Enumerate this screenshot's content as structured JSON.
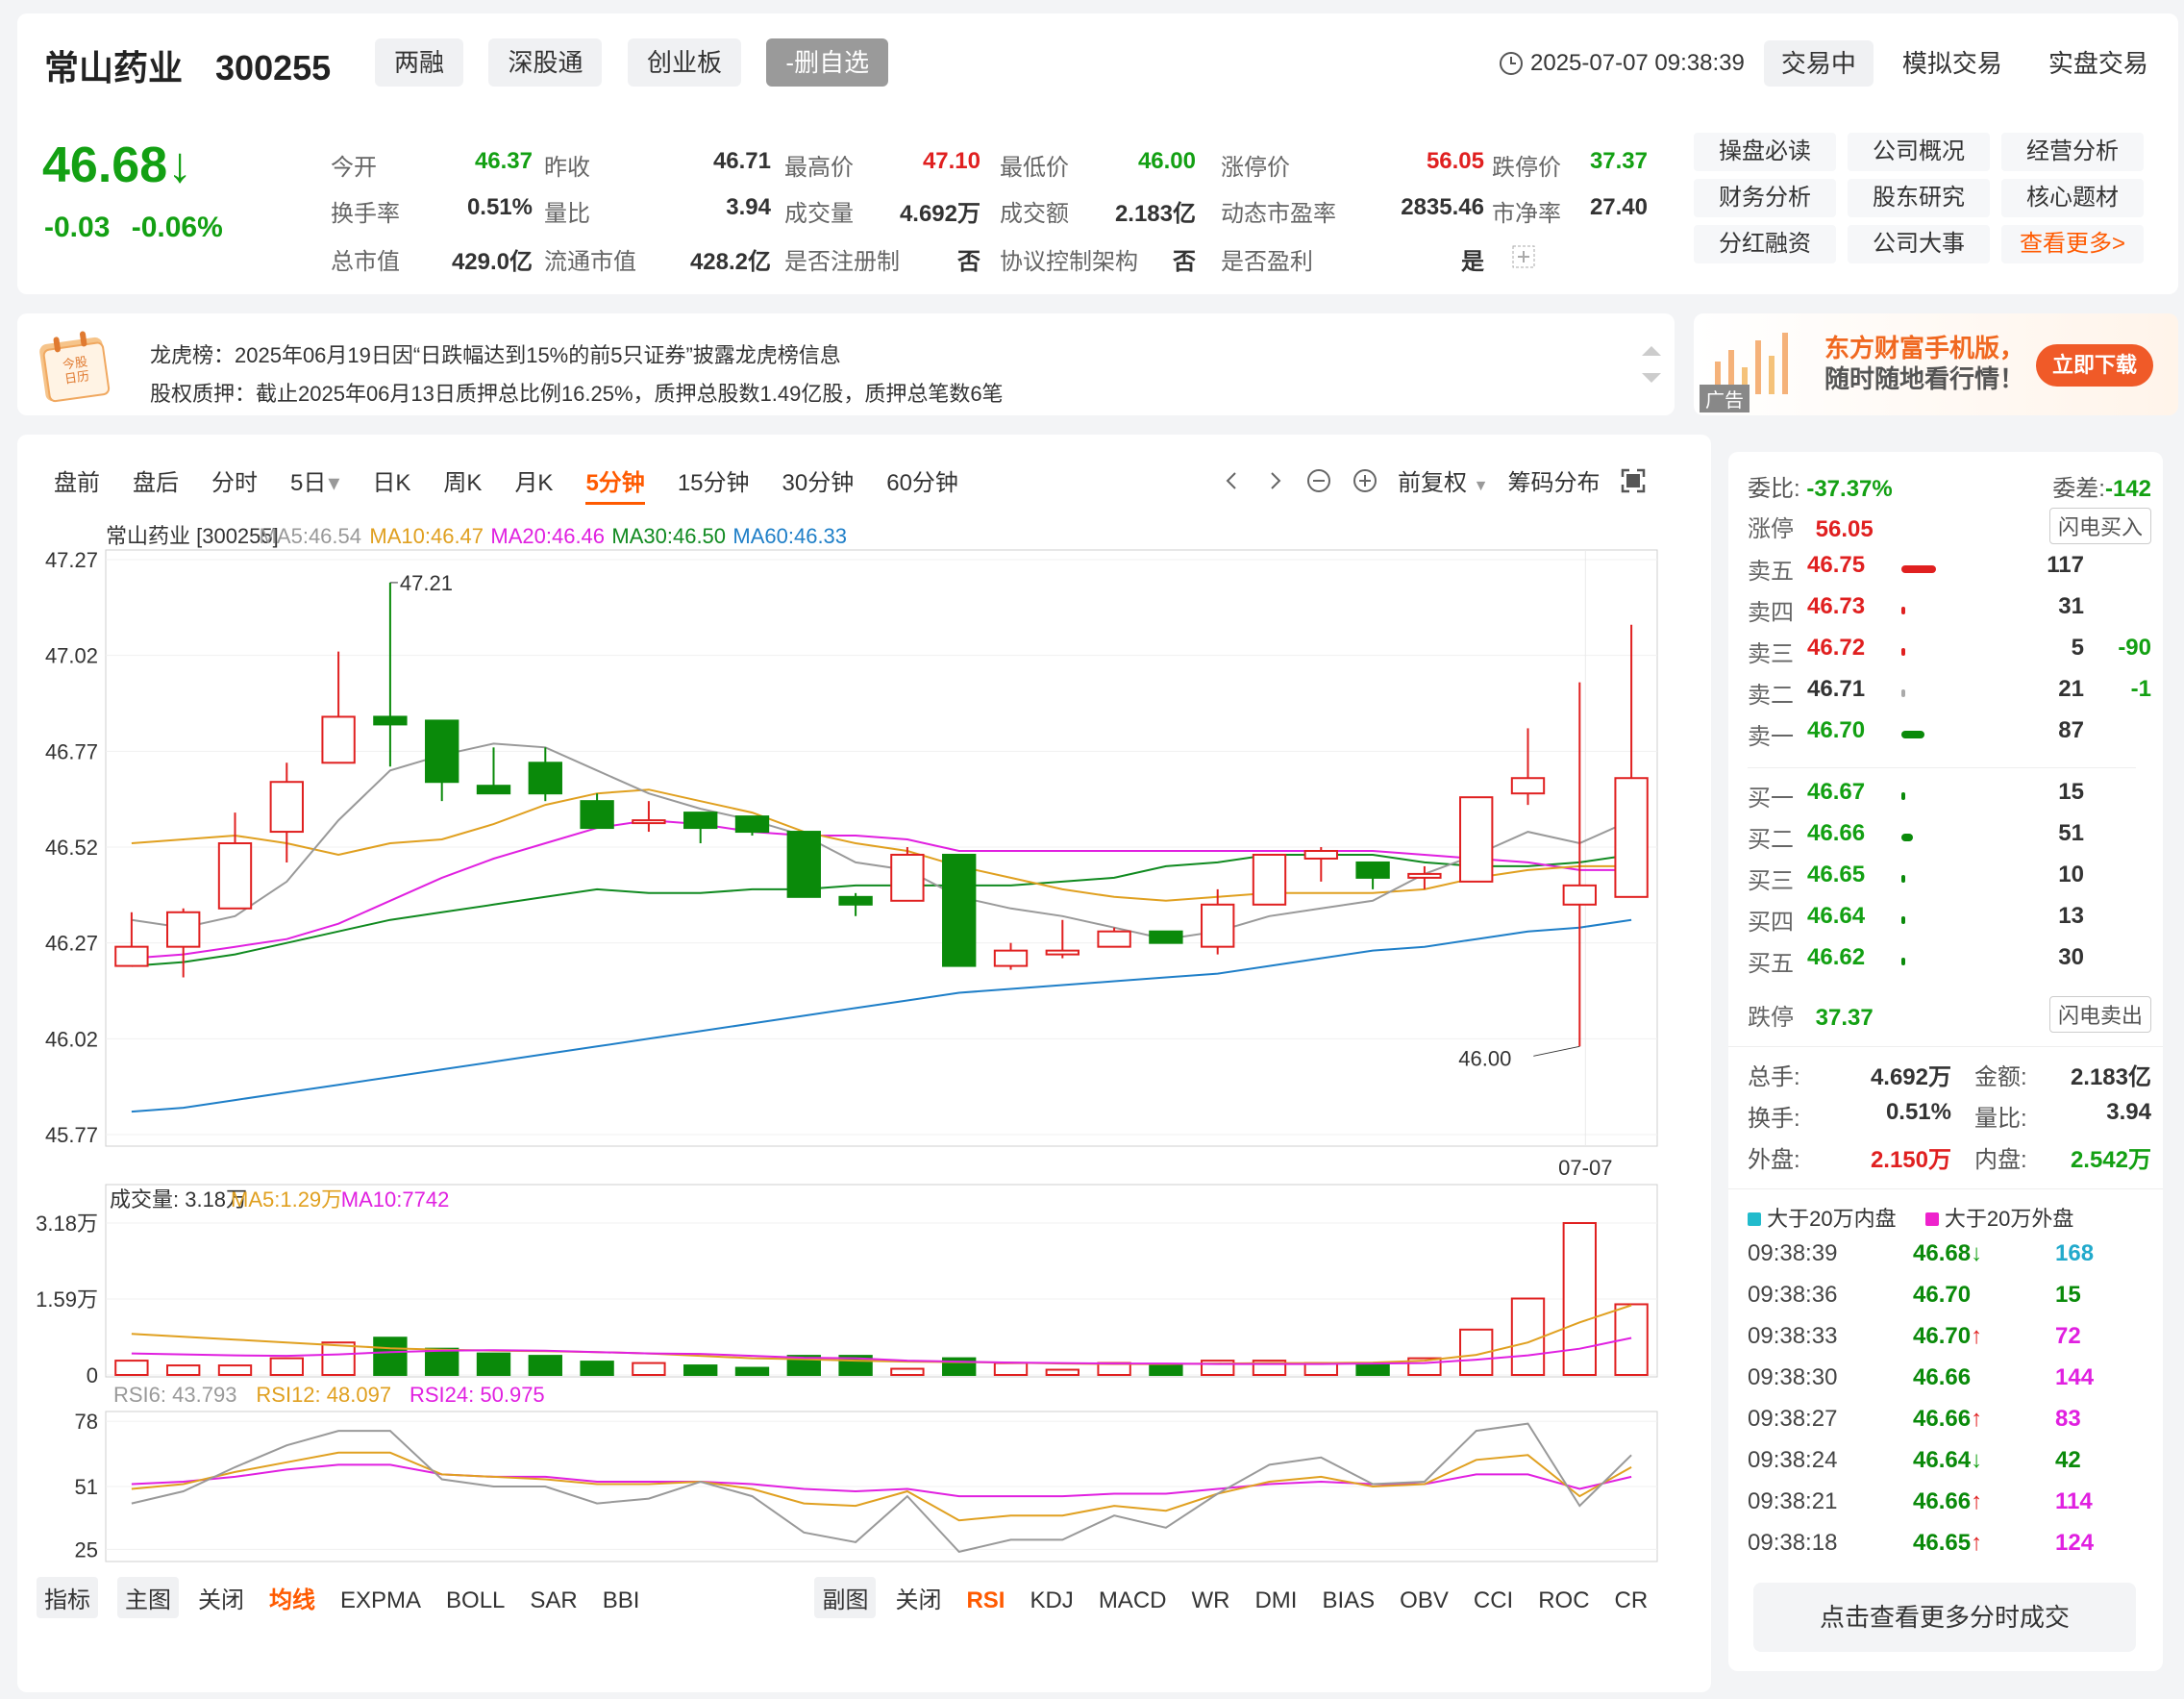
{
  "stock": {
    "name": "常山药业",
    "code": "300255",
    "tags": [
      "两融",
      "深股通",
      "创业板"
    ],
    "watchlist_btn": "-删自选"
  },
  "header": {
    "clock_icon": "clock-icon",
    "datetime": "2025-07-07 09:38:39",
    "status": "交易中",
    "sim_trade": "模拟交易",
    "real_trade": "实盘交易"
  },
  "price": {
    "current": "46.68",
    "arrow": "↓",
    "change": "-0.03",
    "change_pct": "-0.06%"
  },
  "quote": {
    "open_label": "今开",
    "open": "46.37",
    "prev_close_label": "昨收",
    "prev_close": "46.71",
    "high_label": "最高价",
    "high": "47.10",
    "low_label": "最低价",
    "low": "46.00",
    "limit_up_label": "涨停价",
    "limit_up": "56.05",
    "limit_down_label": "跌停价",
    "limit_down": "37.37",
    "turnover_label": "换手率",
    "turnover": "0.51%",
    "vol_ratio_label": "量比",
    "vol_ratio": "3.94",
    "volume_label": "成交量",
    "volume": "4.692万",
    "amount_label": "成交额",
    "amount": "2.183亿",
    "pe_label": "动态市盈率",
    "pe": "2835.46",
    "pb_label": "市净率",
    "pb": "27.40",
    "mktcap_label": "总市值",
    "mktcap": "429.0亿",
    "float_cap_label": "流通市值",
    "float_cap": "428.2亿",
    "registered_label": "是否注册制",
    "registered": "否",
    "vie_label": "协议控制架构",
    "vie": "否",
    "profit_label": "是否盈利",
    "profit": "是"
  },
  "links": [
    "操盘必读",
    "公司概况",
    "经营分析",
    "财务分析",
    "股东研究",
    "核心题材",
    "分红融资",
    "公司大事",
    "查看更多>"
  ],
  "news": {
    "calendar_line1": "今股",
    "calendar_line2": "日历",
    "line1": "龙虎榜：2025年06月19日因“日跌幅达到15%的前5只证券”披露龙虎榜信息",
    "line2": "股权质押：截止2025年06月13日质押总比例16.25%，质押总股数1.49亿股，质押总笔数6笔"
  },
  "ad": {
    "line1": "东方财富手机版，",
    "line2": "随时随地看行情！",
    "button": "立即下载",
    "tag": "广告"
  },
  "chart_tabs": [
    "盘前",
    "盘后",
    "分时",
    "5日",
    "日K",
    "周K",
    "月K",
    "5分钟",
    "15分钟",
    "30分钟",
    "60分钟"
  ],
  "chart_tabs_selected": "5分钟",
  "chart_tools": {
    "adjust": "前复权",
    "chips": "筹码分布"
  },
  "ma_legend": {
    "title": "常山药业 [300255]",
    "ma5": "MA5:46.54",
    "ma10": "MA10:46.47",
    "ma20": "MA20:46.46",
    "ma30": "MA30:46.50",
    "ma60": "MA60:46.33"
  },
  "vol_legend": {
    "title": "成交量: 3.18万",
    "ma5": "MA5:1.29万",
    "ma10": "MA10:7742"
  },
  "rsi_legend": {
    "rsi6": "RSI6: 43.793",
    "rsi12": "RSI12: 48.097",
    "rsi24": "RSI24: 50.975"
  },
  "colors": {
    "up": "#e02020",
    "down": "#0a8a0a",
    "ma5": "#999999",
    "ma10": "#e0a020",
    "ma20": "#e020e0",
    "ma30": "#108a20",
    "ma60": "#1f7fc8",
    "accent": "#ff5a00"
  },
  "chart_data": [
    {
      "type": "candlestick",
      "date_label": "07-07",
      "y_ticks": [
        "47.27",
        "47.02",
        "46.77",
        "46.52",
        "46.27",
        "46.02",
        "45.77"
      ],
      "ylim": [
        45.77,
        47.27
      ],
      "high_label": "47.21",
      "low_label": "46.00",
      "candles": [
        {
          "o": 46.21,
          "c": 46.26,
          "h": 46.35,
          "l": 46.21
        },
        {
          "o": 46.26,
          "c": 46.35,
          "h": 46.36,
          "l": 46.18
        },
        {
          "o": 46.36,
          "c": 46.53,
          "h": 46.61,
          "l": 46.36
        },
        {
          "o": 46.56,
          "c": 46.69,
          "h": 46.74,
          "l": 46.48
        },
        {
          "o": 46.74,
          "c": 46.86,
          "h": 47.03,
          "l": 46.74
        },
        {
          "o": 46.86,
          "c": 46.84,
          "h": 47.21,
          "l": 46.73
        },
        {
          "o": 46.85,
          "c": 46.69,
          "h": 46.85,
          "l": 46.64
        },
        {
          "o": 46.68,
          "c": 46.66,
          "h": 46.78,
          "l": 46.66
        },
        {
          "o": 46.74,
          "c": 46.66,
          "h": 46.78,
          "l": 46.64
        },
        {
          "o": 46.64,
          "c": 46.57,
          "h": 46.66,
          "l": 46.57
        },
        {
          "o": 46.59,
          "c": 46.59,
          "h": 46.64,
          "l": 46.56
        },
        {
          "o": 46.61,
          "c": 46.57,
          "h": 46.61,
          "l": 46.53
        },
        {
          "o": 46.6,
          "c": 46.56,
          "h": 46.6,
          "l": 46.55
        },
        {
          "o": 46.56,
          "c": 46.39,
          "h": 46.56,
          "l": 46.39
        },
        {
          "o": 46.39,
          "c": 46.37,
          "h": 46.4,
          "l": 46.34
        },
        {
          "o": 46.38,
          "c": 46.5,
          "h": 46.52,
          "l": 46.38
        },
        {
          "o": 46.5,
          "c": 46.21,
          "h": 46.5,
          "l": 46.21
        },
        {
          "o": 46.21,
          "c": 46.25,
          "h": 46.27,
          "l": 46.2
        },
        {
          "o": 46.24,
          "c": 46.25,
          "h": 46.33,
          "l": 46.23
        },
        {
          "o": 46.26,
          "c": 46.3,
          "h": 46.31,
          "l": 46.26
        },
        {
          "o": 46.3,
          "c": 46.27,
          "h": 46.3,
          "l": 46.27
        },
        {
          "o": 46.26,
          "c": 46.37,
          "h": 46.41,
          "l": 46.24
        },
        {
          "o": 46.37,
          "c": 46.5,
          "h": 46.5,
          "l": 46.37
        },
        {
          "o": 46.49,
          "c": 46.51,
          "h": 46.52,
          "l": 46.43
        },
        {
          "o": 46.48,
          "c": 46.44,
          "h": 46.48,
          "l": 46.41
        },
        {
          "o": 46.44,
          "c": 46.45,
          "h": 46.47,
          "l": 46.41
        },
        {
          "o": 46.43,
          "c": 46.65,
          "h": 46.65,
          "l": 46.43
        },
        {
          "o": 46.66,
          "c": 46.7,
          "h": 46.83,
          "l": 46.63
        },
        {
          "o": 46.37,
          "c": 46.42,
          "h": 46.95,
          "l": 46.0
        },
        {
          "o": 46.39,
          "c": 46.7,
          "h": 47.1,
          "l": 46.39
        }
      ],
      "ma5": [
        46.33,
        46.31,
        46.34,
        46.43,
        46.59,
        46.72,
        46.76,
        46.79,
        46.78,
        46.72,
        46.66,
        46.62,
        46.59,
        46.55,
        46.48,
        46.46,
        46.39,
        46.36,
        46.34,
        46.31,
        46.28,
        46.3,
        46.34,
        46.36,
        46.38,
        46.45,
        46.5,
        46.56,
        46.53,
        46.59
      ],
      "ma10": [
        46.53,
        46.54,
        46.55,
        46.53,
        46.5,
        46.53,
        46.54,
        46.58,
        46.63,
        46.66,
        46.67,
        46.64,
        46.61,
        46.56,
        46.53,
        46.51,
        46.47,
        46.44,
        46.41,
        46.39,
        46.38,
        46.39,
        46.4,
        46.4,
        46.4,
        46.41,
        46.44,
        46.46,
        46.47,
        46.47
      ],
      "ma20": [
        46.23,
        46.24,
        46.26,
        46.28,
        46.32,
        46.38,
        46.44,
        46.49,
        46.53,
        46.57,
        46.59,
        46.58,
        46.56,
        46.55,
        46.55,
        46.54,
        46.51,
        46.51,
        46.51,
        46.51,
        46.51,
        46.51,
        46.51,
        46.51,
        46.51,
        46.5,
        46.49,
        46.48,
        46.46,
        46.46
      ],
      "ma30": [
        46.21,
        46.22,
        46.24,
        46.27,
        46.3,
        46.33,
        46.35,
        46.37,
        46.39,
        46.41,
        46.4,
        46.4,
        46.41,
        46.41,
        46.42,
        46.42,
        46.42,
        46.42,
        46.43,
        46.44,
        46.47,
        46.48,
        46.5,
        46.5,
        46.5,
        46.48,
        46.47,
        46.47,
        46.48,
        46.5
      ],
      "ma60": [
        45.83,
        45.84,
        45.86,
        45.88,
        45.9,
        45.92,
        45.94,
        45.96,
        45.98,
        46.0,
        46.02,
        46.04,
        46.06,
        46.08,
        46.1,
        46.12,
        46.14,
        46.15,
        46.16,
        46.17,
        46.18,
        46.19,
        46.21,
        46.23,
        46.25,
        46.26,
        46.28,
        46.3,
        46.31,
        46.33
      ]
    },
    {
      "type": "bar",
      "title": "成交量",
      "y_ticks": [
        "3.18万",
        "1.59万",
        "0"
      ],
      "ylim": [
        0,
        31800
      ],
      "values": [
        3000,
        2000,
        2000,
        3500,
        6800,
        7800,
        5500,
        4500,
        4000,
        2800,
        2500,
        2000,
        1500,
        4000,
        4000,
        1300,
        3500,
        2500,
        1100,
        2500,
        2000,
        3000,
        3000,
        2500,
        2500,
        3500,
        9500,
        16000,
        31800,
        14800
      ],
      "ma5": [
        8600,
        8000,
        7400,
        6800,
        6200,
        5600,
        5300,
        5100,
        5000,
        4800,
        4500,
        4000,
        3500,
        3300,
        3000,
        2800,
        2700,
        2600,
        2400,
        2300,
        2300,
        2400,
        2500,
        2500,
        2600,
        3000,
        4200,
        6800,
        11000,
        14600
      ],
      "ma10": [
        4500,
        4300,
        4100,
        4000,
        4300,
        4800,
        5100,
        5200,
        5100,
        4800,
        4500,
        4400,
        4000,
        3600,
        3500,
        3000,
        2800,
        2600,
        2500,
        2400,
        2400,
        2300,
        2300,
        2300,
        2400,
        2500,
        3200,
        4100,
        5500,
        7742
      ]
    },
    {
      "type": "line",
      "title": "RSI",
      "y_ticks": [
        "78",
        "51",
        "25"
      ],
      "ylim": [
        20,
        82
      ],
      "rsi6": [
        44,
        49,
        59,
        68,
        74,
        74,
        54,
        51,
        51,
        44,
        46,
        53,
        47,
        32,
        28,
        47,
        24,
        29,
        29,
        39,
        34,
        48,
        60,
        63,
        52,
        53,
        74,
        77,
        43,
        64
      ],
      "rsi12": [
        50,
        52,
        57,
        61,
        65,
        65,
        56,
        55,
        54,
        52,
        52,
        53,
        50,
        44,
        43,
        49,
        37,
        39,
        39,
        43,
        41,
        48,
        53,
        55,
        51,
        52,
        62,
        64,
        47,
        59
      ],
      "rsi24": [
        52,
        53,
        55,
        58,
        60,
        60,
        56,
        55,
        55,
        53,
        53,
        53,
        52,
        50,
        49,
        50,
        47,
        47,
        47,
        48,
        48,
        50,
        52,
        53,
        52,
        52,
        56,
        56,
        50,
        55
      ]
    }
  ],
  "indicator_bar": {
    "indicator": "指标",
    "main": "主图",
    "close1": "关闭",
    "items1": [
      "均线",
      "EXPMA",
      "BOLL",
      "SAR",
      "BBI"
    ],
    "sub": "副图",
    "close2": "关闭",
    "items2": [
      "RSI",
      "KDJ",
      "MACD",
      "WR",
      "DMI",
      "BIAS",
      "OBV",
      "CCI",
      "ROC",
      "CR"
    ]
  },
  "orderbook": {
    "ratio_label": "委比:",
    "ratio": "-37.37%",
    "diff_label": "委差:",
    "diff": "-142",
    "limit_up_label": "涨停",
    "limit_up": "56.05",
    "flash_buy": "闪电买入",
    "limit_down_label": "跌停",
    "limit_down": "37.37",
    "flash_sell": "闪电卖出",
    "asks": [
      {
        "label": "卖五",
        "price": "46.75",
        "vol": "117",
        "delta": "",
        "bar": 0.9,
        "color": "#e02020"
      },
      {
        "label": "卖四",
        "price": "46.73",
        "vol": "31",
        "delta": "",
        "bar": 0.08,
        "color": "#e02020"
      },
      {
        "label": "卖三",
        "price": "46.72",
        "vol": "5",
        "delta": "-90",
        "bar": 0.02,
        "color": "#e02020"
      },
      {
        "label": "卖二",
        "price": "46.71",
        "vol": "21",
        "delta": "-1",
        "bar": 0.06,
        "color": "#aaaaaa"
      },
      {
        "label": "卖一",
        "price": "46.70",
        "vol": "87",
        "delta": "",
        "bar": 0.6,
        "color": "#0a8a0a"
      }
    ],
    "bids": [
      {
        "label": "买一",
        "price": "46.67",
        "vol": "15",
        "bar": 0.04
      },
      {
        "label": "买二",
        "price": "46.66",
        "vol": "51",
        "bar": 0.3
      },
      {
        "label": "买三",
        "price": "46.65",
        "vol": "10",
        "bar": 0.03
      },
      {
        "label": "买四",
        "price": "46.64",
        "vol": "13",
        "bar": 0.04
      },
      {
        "label": "买五",
        "price": "46.62",
        "vol": "30",
        "bar": 0.06
      }
    ],
    "total_hands_label": "总手:",
    "total_hands": "4.692万",
    "amount_label": "金额:",
    "amount": "2.183亿",
    "turnover_label": "换手:",
    "turnover": "0.51%",
    "vol_ratio_label": "量比:",
    "vol_ratio": "3.94",
    "outer_label": "外盘:",
    "outer": "2.150万",
    "inner_label": "内盘:",
    "inner": "2.542万"
  },
  "ticks": {
    "legend_in": "大于20万内盘",
    "legend_out": "大于20万外盘",
    "rows": [
      {
        "time": "09:38:39",
        "price": "46.68",
        "arrow": "↓",
        "vol": "168",
        "pc": "#0a8a0a",
        "vc": "#22aacc"
      },
      {
        "time": "09:38:36",
        "price": "46.70",
        "arrow": "",
        "vol": "15",
        "pc": "#0a8a0a",
        "vc": "#0a8a0a"
      },
      {
        "time": "09:38:33",
        "price": "46.70",
        "arrow": "↑",
        "vol": "72",
        "pc": "#0a8a0a",
        "vc": "#e020e0"
      },
      {
        "time": "09:38:30",
        "price": "46.66",
        "arrow": "",
        "vol": "144",
        "pc": "#0a8a0a",
        "vc": "#e020e0"
      },
      {
        "time": "09:38:27",
        "price": "46.66",
        "arrow": "↑",
        "vol": "83",
        "pc": "#0a8a0a",
        "vc": "#e020e0"
      },
      {
        "time": "09:38:24",
        "price": "46.64",
        "arrow": "↓",
        "vol": "42",
        "pc": "#0a8a0a",
        "vc": "#0a8a0a"
      },
      {
        "time": "09:38:21",
        "price": "46.66",
        "arrow": "↑",
        "vol": "114",
        "pc": "#0a8a0a",
        "vc": "#e020e0"
      },
      {
        "time": "09:38:18",
        "price": "46.65",
        "arrow": "↑",
        "vol": "124",
        "pc": "#0a8a0a",
        "vc": "#e020e0"
      }
    ],
    "more_btn": "点击查看更多分时成交"
  }
}
